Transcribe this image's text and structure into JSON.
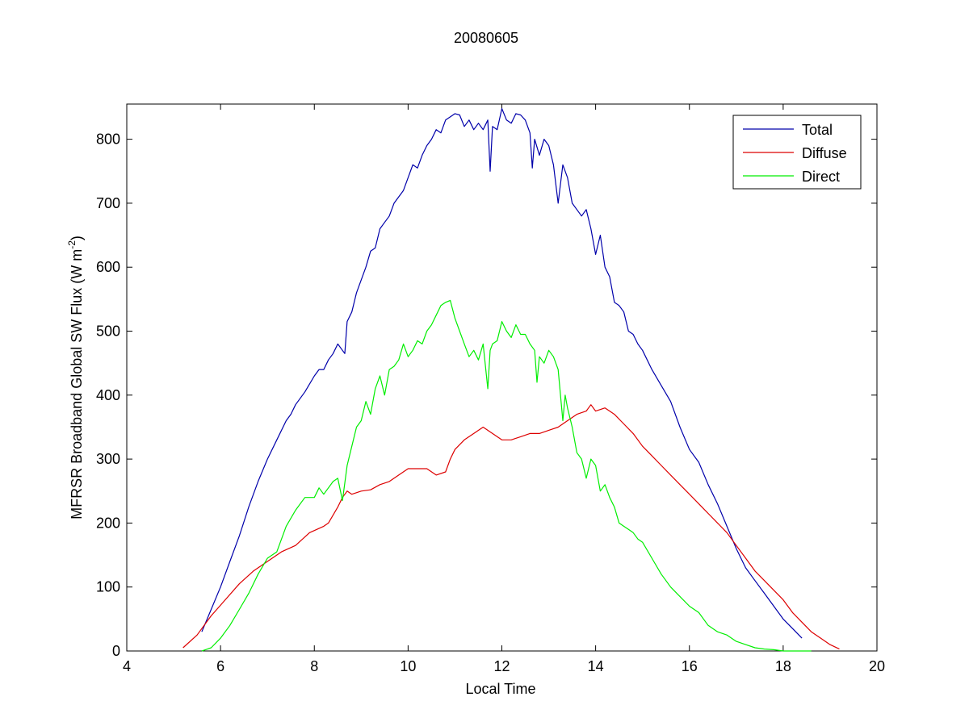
{
  "chart_data": {
    "type": "line",
    "title": "20080605",
    "xlabel": "Local Time",
    "ylabel": "MFRSR Broadband Global SW Flux (W m",
    "ylabel_sup": "-2",
    "ylabel_close": ")",
    "xlim": [
      4,
      20
    ],
    "ylim": [
      0,
      855
    ],
    "xticks": [
      4,
      6,
      8,
      10,
      12,
      14,
      16,
      18,
      20
    ],
    "yticks": [
      0,
      100,
      200,
      300,
      400,
      500,
      600,
      700,
      800
    ],
    "grid": false,
    "legend_position": "top-right",
    "series": [
      {
        "name": "Total",
        "color": "#0000aa",
        "x": [
          5.6,
          5.8,
          6.0,
          6.2,
          6.4,
          6.6,
          6.8,
          7.0,
          7.2,
          7.4,
          7.5,
          7.6,
          7.8,
          8.0,
          8.1,
          8.2,
          8.3,
          8.4,
          8.5,
          8.6,
          8.65,
          8.7,
          8.8,
          8.9,
          9.0,
          9.1,
          9.2,
          9.3,
          9.4,
          9.5,
          9.6,
          9.7,
          9.8,
          9.9,
          10.0,
          10.1,
          10.2,
          10.3,
          10.4,
          10.5,
          10.6,
          10.7,
          10.8,
          10.9,
          11.0,
          11.1,
          11.2,
          11.3,
          11.4,
          11.5,
          11.6,
          11.7,
          11.75,
          11.8,
          11.9,
          12.0,
          12.1,
          12.2,
          12.3,
          12.4,
          12.5,
          12.6,
          12.65,
          12.7,
          12.8,
          12.9,
          13.0,
          13.1,
          13.2,
          13.3,
          13.4,
          13.5,
          13.6,
          13.7,
          13.8,
          13.9,
          14.0,
          14.1,
          14.2,
          14.3,
          14.4,
          14.5,
          14.6,
          14.7,
          14.8,
          14.9,
          15.0,
          15.2,
          15.4,
          15.6,
          15.8,
          16.0,
          16.2,
          16.4,
          16.6,
          16.8,
          17.0,
          17.2,
          17.4,
          17.6,
          17.8,
          18.0,
          18.2,
          18.4
        ],
        "y": [
          30,
          65,
          100,
          140,
          180,
          225,
          265,
          300,
          330,
          360,
          370,
          385,
          405,
          430,
          440,
          440,
          455,
          465,
          480,
          470,
          465,
          515,
          530,
          560,
          580,
          600,
          625,
          630,
          660,
          670,
          680,
          700,
          710,
          720,
          740,
          760,
          755,
          775,
          790,
          800,
          815,
          810,
          830,
          835,
          840,
          838,
          820,
          830,
          815,
          825,
          815,
          830,
          750,
          820,
          815,
          848,
          830,
          825,
          840,
          838,
          830,
          810,
          755,
          800,
          775,
          800,
          790,
          760,
          700,
          760,
          740,
          700,
          690,
          680,
          690,
          660,
          620,
          650,
          600,
          585,
          545,
          540,
          530,
          500,
          495,
          480,
          470,
          440,
          415,
          390,
          350,
          315,
          295,
          260,
          230,
          195,
          160,
          130,
          110,
          90,
          70,
          50,
          35,
          20
        ]
      },
      {
        "name": "Diffuse",
        "color": "#dd0000",
        "x": [
          5.2,
          5.5,
          5.8,
          6.1,
          6.4,
          6.7,
          7.0,
          7.3,
          7.6,
          7.9,
          8.2,
          8.3,
          8.5,
          8.6,
          8.7,
          8.8,
          9.0,
          9.2,
          9.4,
          9.6,
          9.8,
          10.0,
          10.2,
          10.4,
          10.6,
          10.8,
          10.9,
          11.0,
          11.2,
          11.4,
          11.6,
          11.8,
          12.0,
          12.2,
          12.4,
          12.6,
          12.8,
          13.0,
          13.2,
          13.4,
          13.6,
          13.8,
          13.9,
          14.0,
          14.2,
          14.4,
          14.6,
          14.8,
          15.0,
          15.2,
          15.4,
          15.6,
          15.8,
          16.0,
          16.2,
          16.4,
          16.6,
          16.8,
          17.0,
          17.2,
          17.4,
          17.6,
          17.8,
          18.0,
          18.2,
          18.4,
          18.6,
          18.8,
          19.0,
          19.2
        ],
        "y": [
          5,
          25,
          55,
          80,
          105,
          125,
          140,
          155,
          165,
          185,
          195,
          200,
          225,
          240,
          250,
          245,
          250,
          252,
          260,
          265,
          275,
          285,
          285,
          285,
          275,
          280,
          300,
          315,
          330,
          340,
          350,
          340,
          330,
          330,
          335,
          340,
          340,
          345,
          350,
          360,
          370,
          375,
          385,
          375,
          380,
          370,
          355,
          340,
          320,
          305,
          290,
          275,
          260,
          245,
          230,
          215,
          200,
          185,
          165,
          145,
          125,
          110,
          95,
          80,
          60,
          45,
          30,
          20,
          10,
          3
        ]
      },
      {
        "name": "Direct",
        "color": "#00ee00",
        "x": [
          5.6,
          5.8,
          6.0,
          6.2,
          6.4,
          6.6,
          6.8,
          7.0,
          7.2,
          7.4,
          7.6,
          7.8,
          8.0,
          8.1,
          8.2,
          8.4,
          8.5,
          8.6,
          8.7,
          8.8,
          8.9,
          9.0,
          9.1,
          9.2,
          9.3,
          9.4,
          9.5,
          9.6,
          9.7,
          9.8,
          9.9,
          10.0,
          10.1,
          10.2,
          10.3,
          10.4,
          10.5,
          10.6,
          10.7,
          10.8,
          10.9,
          11.0,
          11.1,
          11.2,
          11.3,
          11.4,
          11.5,
          11.6,
          11.7,
          11.75,
          11.8,
          11.9,
          12.0,
          12.1,
          12.2,
          12.3,
          12.4,
          12.5,
          12.6,
          12.7,
          12.75,
          12.8,
          12.9,
          13.0,
          13.1,
          13.2,
          13.3,
          13.35,
          13.4,
          13.5,
          13.6,
          13.7,
          13.8,
          13.9,
          14.0,
          14.1,
          14.2,
          14.3,
          14.4,
          14.5,
          14.6,
          14.7,
          14.8,
          14.9,
          15.0,
          15.2,
          15.4,
          15.6,
          15.8,
          16.0,
          16.2,
          16.4,
          16.6,
          16.8,
          17.0,
          17.2,
          17.4,
          17.6,
          17.8,
          18.0,
          18.2,
          18.4,
          18.6
        ],
        "y": [
          0,
          5,
          20,
          40,
          65,
          90,
          120,
          145,
          155,
          195,
          220,
          240,
          240,
          255,
          245,
          265,
          270,
          235,
          290,
          320,
          350,
          360,
          390,
          370,
          410,
          430,
          400,
          440,
          445,
          455,
          480,
          460,
          470,
          485,
          480,
          500,
          510,
          525,
          540,
          545,
          548,
          520,
          500,
          480,
          460,
          470,
          455,
          480,
          410,
          470,
          480,
          485,
          515,
          500,
          490,
          510,
          495,
          495,
          480,
          470,
          420,
          460,
          450,
          470,
          460,
          440,
          360,
          400,
          380,
          350,
          310,
          300,
          270,
          300,
          290,
          250,
          260,
          240,
          225,
          200,
          195,
          190,
          185,
          175,
          170,
          145,
          120,
          100,
          85,
          70,
          60,
          40,
          30,
          25,
          15,
          10,
          5,
          3,
          2,
          0,
          0,
          0,
          0
        ]
      }
    ]
  }
}
